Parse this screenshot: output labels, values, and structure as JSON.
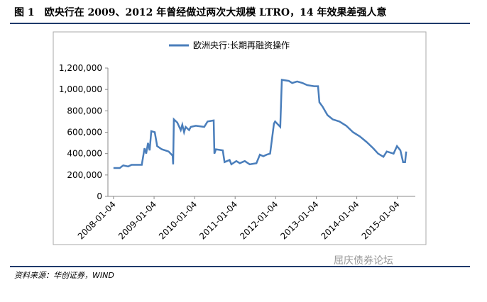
{
  "title": "图 1　欧央行在 2009、2012 年曾经做过两次大规模 LTRO，14 年效果差强人意",
  "source": "资料来源：华创证券，WIND",
  "watermark": "屈庆债券论坛",
  "chart_data": {
    "type": "line",
    "x": [
      "2008-01-04",
      "2008-03-01",
      "2008-04-01",
      "2008-05-15",
      "2008-06-15",
      "2008-09-15",
      "2008-10-10",
      "2008-10-25",
      "2008-11-10",
      "2008-11-25",
      "2008-12-10",
      "2009-01-10",
      "2009-02-01",
      "2009-03-15",
      "2009-05-15",
      "2009-06-20",
      "2009-06-25",
      "2009-07-01",
      "2009-08-01",
      "2009-09-01",
      "2009-09-15",
      "2009-10-01",
      "2009-10-15",
      "2009-11-15",
      "2009-12-01",
      "2010-01-15",
      "2010-04-01",
      "2010-05-01",
      "2010-06-25",
      "2010-07-01",
      "2010-07-15",
      "2010-09-15",
      "2010-10-01",
      "2010-11-15",
      "2010-12-01",
      "2011-01-15",
      "2011-02-15",
      "2011-04-01",
      "2011-05-15",
      "2011-07-15",
      "2011-08-15",
      "2011-09-15",
      "2011-10-15",
      "2011-11-15",
      "2011-12-20",
      "2011-12-30",
      "2012-02-15",
      "2012-02-29",
      "2012-05-01",
      "2012-06-01",
      "2012-07-15",
      "2012-09-01",
      "2012-10-15",
      "2012-12-15",
      "2013-01-20",
      "2013-02-01",
      "2013-03-01",
      "2013-04-15",
      "2013-06-01",
      "2013-08-01",
      "2013-10-01",
      "2013-12-01",
      "2014-02-01",
      "2014-04-01",
      "2014-06-01",
      "2014-07-15",
      "2014-09-01",
      "2014-10-01",
      "2014-12-01",
      "2015-01-01",
      "2015-02-01",
      "2015-02-25",
      "2015-03-15",
      "2015-03-25"
    ],
    "series": [
      {
        "name": "欧洲央行:长期再融资操作",
        "color": "#4a7ebb",
        "values": [
          265000,
          265000,
          290000,
          280000,
          295000,
          295000,
          450000,
          400000,
          500000,
          430000,
          610000,
          600000,
          470000,
          440000,
          420000,
          380000,
          300000,
          720000,
          690000,
          620000,
          670000,
          600000,
          650000,
          620000,
          650000,
          660000,
          650000,
          700000,
          710000,
          400000,
          440000,
          430000,
          320000,
          340000,
          300000,
          330000,
          310000,
          330000,
          300000,
          310000,
          390000,
          375000,
          390000,
          400000,
          680000,
          700000,
          650000,
          1090000,
          1080000,
          1060000,
          1075000,
          1060000,
          1040000,
          1030000,
          1030000,
          880000,
          840000,
          760000,
          720000,
          700000,
          660000,
          600000,
          560000,
          510000,
          450000,
          400000,
          370000,
          420000,
          400000,
          470000,
          430000,
          320000,
          320000,
          420000
        ]
      }
    ],
    "xlim": [
      "2007-11-15",
      "2015-06-15"
    ],
    "xticks": [
      "2008-01-04",
      "2009-01-04",
      "2010-01-04",
      "2011-01-04",
      "2012-01-04",
      "2013-01-04",
      "2014-01-04",
      "2015-01-04"
    ],
    "ylim": [
      0,
      1200000
    ],
    "yticks": [
      0,
      {
        "value": 200000,
        "label": "200,000"
      },
      {
        "value": 400000,
        "label": "400,000"
      },
      {
        "value": 600000,
        "label": "600,000"
      },
      {
        "value": 800000,
        "label": "800,000"
      },
      {
        "value": 1000000,
        "label": "1,000,000"
      },
      {
        "value": 1200000,
        "label": "1,200,000"
      }
    ],
    "legend": "top"
  }
}
